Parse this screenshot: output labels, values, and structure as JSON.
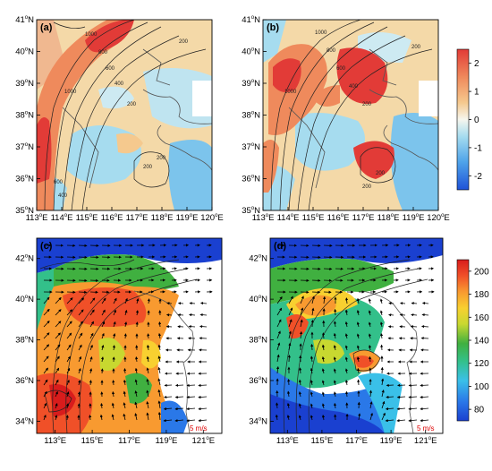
{
  "panels": [
    {
      "id": "a",
      "label": "(a)",
      "type": "anomaly",
      "xticks": [
        "113",
        "114",
        "115",
        "116",
        "117",
        "118",
        "119",
        "120"
      ],
      "yticks": [
        "35",
        "36",
        "37",
        "38",
        "39",
        "40",
        "41"
      ],
      "contour_labels": [
        "1000",
        "800",
        "600",
        "400",
        "200",
        "1000",
        "600",
        "400",
        "200",
        "200",
        "200"
      ]
    },
    {
      "id": "b",
      "label": "(b)",
      "type": "anomaly",
      "xticks": [
        "113",
        "114",
        "115",
        "116",
        "117",
        "118",
        "119",
        "120"
      ],
      "yticks": [
        "35",
        "36",
        "37",
        "38",
        "39",
        "40",
        "41"
      ],
      "contour_labels": [
        "1000",
        "800",
        "600",
        "400",
        "200",
        "1000",
        "200",
        "200",
        "200"
      ]
    },
    {
      "id": "c",
      "label": "(c)",
      "type": "wind",
      "xticks": [
        "113",
        "115",
        "117",
        "119",
        "121"
      ],
      "yticks": [
        "34",
        "36",
        "38",
        "40",
        "42"
      ],
      "vector_label": "5 m/s"
    },
    {
      "id": "d",
      "label": "(d)",
      "type": "wind",
      "xticks": [
        "113",
        "115",
        "117",
        "119",
        "121"
      ],
      "yticks": [
        "34",
        "36",
        "38",
        "40",
        "42"
      ],
      "vector_label": "5 m/s"
    }
  ],
  "x_unit": "E",
  "y_unit": "N",
  "colorbar_top": {
    "ticks": [
      "2",
      "1",
      "0",
      "-1",
      "-2"
    ],
    "min": -2,
    "max": 2,
    "colors": [
      "#1f52d8",
      "#4fa4ea",
      "#a6dcef",
      "#dff3f6",
      "#f9f2d6",
      "#f5c98e",
      "#ef8a5c",
      "#e23b37"
    ]
  },
  "colorbar_bottom": {
    "ticks": [
      "200",
      "180",
      "160",
      "140",
      "120",
      "100",
      "80"
    ],
    "min": 70,
    "max": 210,
    "colors": [
      "#1a40d0",
      "#2a78e8",
      "#3ac0e8",
      "#33c08a",
      "#40b040",
      "#c8d830",
      "#f8d030",
      "#f89a30",
      "#f05028",
      "#d81c1c"
    ]
  }
}
